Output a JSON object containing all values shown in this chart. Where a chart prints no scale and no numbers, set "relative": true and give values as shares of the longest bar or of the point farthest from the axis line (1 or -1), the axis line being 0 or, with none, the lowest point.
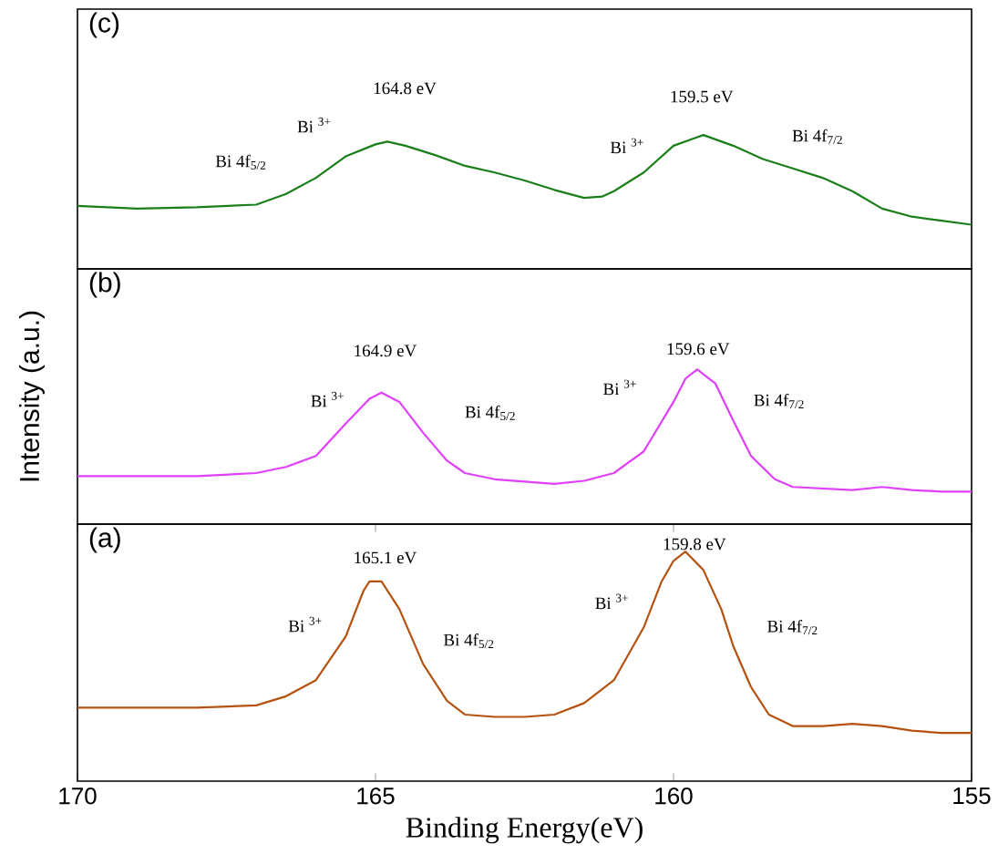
{
  "chart_data": [
    {
      "type": "line",
      "title": "(c)",
      "relative": true,
      "xlim": [
        170,
        155
      ],
      "tick_labels": false,
      "x": [
        170,
        169,
        168,
        167,
        166.5,
        166,
        165.5,
        165,
        164.8,
        164.5,
        164,
        163.5,
        163,
        162.5,
        162,
        161.5,
        161.2,
        161,
        160.5,
        160,
        159.5,
        159,
        158.5,
        158,
        157.5,
        157,
        156.5,
        156,
        155.5,
        155
      ],
      "series": [
        {
          "color": "#1a7f1a",
          "values": [
            0.47,
            0.45,
            0.46,
            0.48,
            0.56,
            0.68,
            0.84,
            0.93,
            0.95,
            0.92,
            0.85,
            0.77,
            0.72,
            0.66,
            0.59,
            0.53,
            0.54,
            0.58,
            0.72,
            0.92,
            1,
            0.92,
            0.82,
            0.75,
            0.68,
            0.58,
            0.45,
            0.39,
            0.36,
            0.33
          ]
        }
      ],
      "annotations": [
        "Bi 4f$_{5/2}$",
        "Bi $^{3+}$",
        "164.8 eV",
        "Bi $^{3+}$",
        "159.5 eV",
        "Bi 4f$_{7/2}$"
      ]
    },
    {
      "type": "line",
      "title": "(b)",
      "ylabel": "Intensity (a.u.)",
      "relative": true,
      "xlim": [
        170,
        155
      ],
      "tick_labels": false,
      "x": [
        170,
        168,
        167,
        166.5,
        166,
        165.5,
        165.1,
        164.9,
        164.6,
        164.2,
        163.8,
        163.5,
        163,
        162,
        161.5,
        161,
        160.5,
        160,
        159.8,
        159.6,
        159.3,
        159,
        158.7,
        158.3,
        158,
        157,
        156.5,
        156,
        155.5,
        155
      ],
      "series": [
        {
          "color": "#e040fb",
          "values": [
            0.31,
            0.31,
            0.33,
            0.37,
            0.44,
            0.65,
            0.81,
            0.85,
            0.79,
            0.59,
            0.41,
            0.33,
            0.29,
            0.26,
            0.28,
            0.33,
            0.47,
            0.79,
            0.94,
            1,
            0.91,
            0.67,
            0.44,
            0.29,
            0.24,
            0.22,
            0.24,
            0.22,
            0.21,
            0.21
          ]
        }
      ],
      "annotations": [
        "Bi $^{3+}$",
        "164.9 eV",
        "Bi 4f$_{5/2}$",
        "Bi $^{3+}$",
        "159.6 eV",
        "Bi 4f$_{7/2}$"
      ]
    },
    {
      "type": "line",
      "title": "(a)",
      "xlabel": "Binding Energy(eV)",
      "relative": true,
      "xlim": [
        170,
        155
      ],
      "xticks": [
        170,
        165,
        160,
        155
      ],
      "tick_labels": "x",
      "x": [
        170,
        168,
        167,
        166.5,
        166,
        165.5,
        165.2,
        165.1,
        164.9,
        164.6,
        164.2,
        163.8,
        163.5,
        163,
        162.5,
        162,
        161.5,
        161,
        160.5,
        160.2,
        160,
        159.8,
        159.5,
        159.2,
        159,
        158.7,
        158.4,
        158,
        157.5,
        157,
        156.5,
        156,
        155.5,
        155
      ],
      "series": [
        {
          "color": "#b5520f",
          "values": [
            0.32,
            0.32,
            0.33,
            0.37,
            0.44,
            0.63,
            0.83,
            0.87,
            0.87,
            0.75,
            0.51,
            0.35,
            0.29,
            0.28,
            0.28,
            0.29,
            0.34,
            0.44,
            0.67,
            0.87,
            0.96,
            1,
            0.92,
            0.75,
            0.59,
            0.41,
            0.29,
            0.24,
            0.24,
            0.25,
            0.24,
            0.22,
            0.21,
            0.21
          ]
        }
      ],
      "annotations": [
        "Bi $^{3+}$",
        "165.1 eV",
        "Bi 4f$_{5/2}$",
        "Bi $^{3+}$",
        "159.8 eV",
        "Bi 4f$_{7/2}$"
      ]
    }
  ]
}
